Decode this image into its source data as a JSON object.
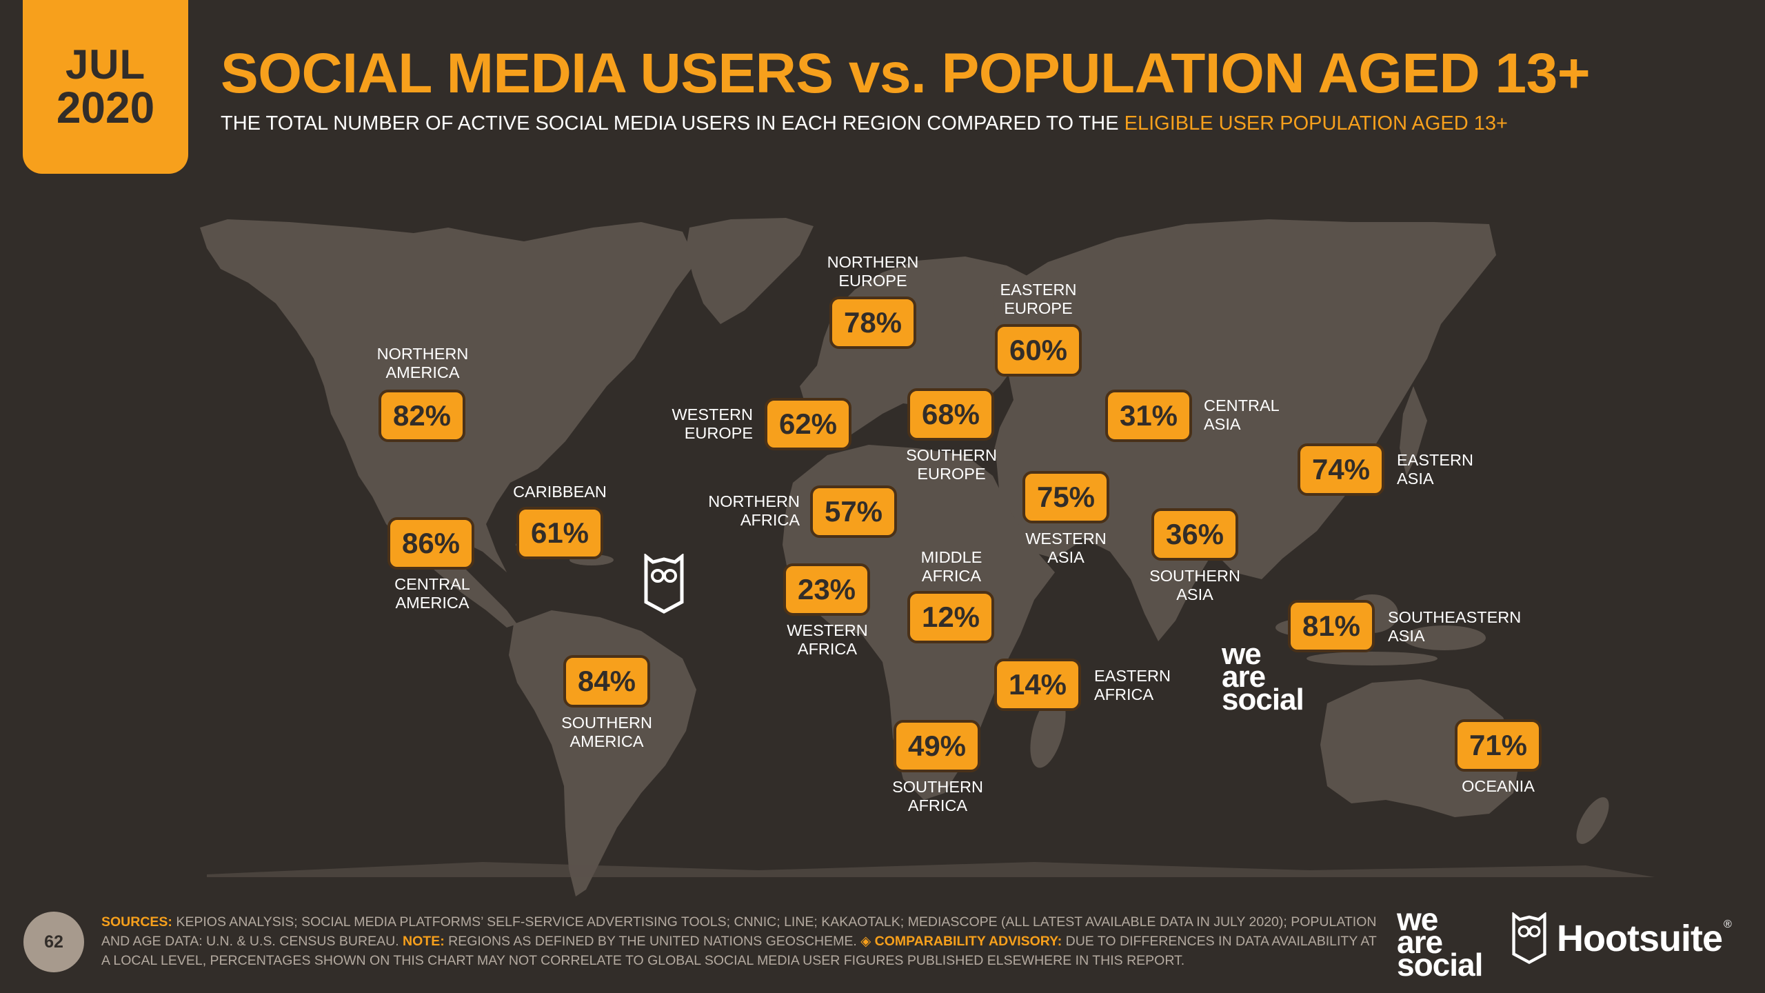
{
  "header": {
    "month": "JUL",
    "year": "2020",
    "title": "SOCIAL MEDIA USERS vs. POPULATION AGED 13+",
    "subtitle_main": "THE TOTAL NUMBER OF ACTIVE SOCIAL MEDIA USERS IN EACH REGION COMPARED TO THE ",
    "subtitle_highlight": "ELIGIBLE USER POPULATION AGED 13+"
  },
  "colors": {
    "background": "#322d29",
    "land": "#5a524b",
    "accent": "#f7a01c",
    "text": "#ffffff"
  },
  "regions": [
    {
      "label": "NORTHERN\nAMERICA",
      "value": "82%"
    },
    {
      "label": "CENTRAL\nAMERICA",
      "value": "86%"
    },
    {
      "label": "CARIBBEAN",
      "value": "61%"
    },
    {
      "label": "SOUTHERN\nAMERICA",
      "value": "84%"
    },
    {
      "label": "NORTHERN\nEUROPE",
      "value": "78%"
    },
    {
      "label": "WESTERN\nEUROPE",
      "value": "62%"
    },
    {
      "label": "SOUTHERN\nEUROPE",
      "value": "68%"
    },
    {
      "label": "EASTERN\nEUROPE",
      "value": "60%"
    },
    {
      "label": "NORTHERN\nAFRICA",
      "value": "57%"
    },
    {
      "label": "WESTERN\nAFRICA",
      "value": "23%"
    },
    {
      "label": "MIDDLE\nAFRICA",
      "value": "12%"
    },
    {
      "label": "EASTERN\nAFRICA",
      "value": "14%"
    },
    {
      "label": "SOUTHERN\nAFRICA",
      "value": "49%"
    },
    {
      "label": "WESTERN\nASIA",
      "value": "75%"
    },
    {
      "label": "CENTRAL\nASIA",
      "value": "31%"
    },
    {
      "label": "SOUTHERN\nASIA",
      "value": "36%"
    },
    {
      "label": "EASTERN\nASIA",
      "value": "74%"
    },
    {
      "label": "SOUTHEASTERN\nASIA",
      "value": "81%"
    },
    {
      "label": "OCEANIA",
      "value": "71%"
    }
  ],
  "watermark": {
    "brand": "we\nare\nsocial"
  },
  "footer": {
    "page_number": "62",
    "sources_label": "SOURCES:",
    "sources_text": " KEPIOS ANALYSIS; SOCIAL MEDIA PLATFORMS’ SELF-SERVICE ADVERTISING TOOLS; CNNIC; LINE; KAKAOTALK; MEDIASCOPE (ALL LATEST AVAILABLE DATA IN JULY 2020); POPULATION AND AGE DATA: U.N. & U.S. CENSUS BUREAU. ",
    "note_label": "NOTE:",
    "note_text": " REGIONS AS DEFINED BY THE UNITED NATIONS GEOSCHEME. ",
    "advisory_label": "◈ COMPARABILITY ADVISORY:",
    "advisory_text": " DUE TO DIFFERENCES IN DATA AVAILABILITY AT A LOCAL LEVEL, PERCENTAGES SHOWN ON THIS CHART MAY NOT CORRELATE TO GLOBAL SOCIAL MEDIA USER FIGURES PUBLISHED ELSEWHERE IN THIS REPORT.",
    "we_are_social": "we\nare\nsocial",
    "hootsuite": "Hootsuite",
    "registered": "®"
  }
}
